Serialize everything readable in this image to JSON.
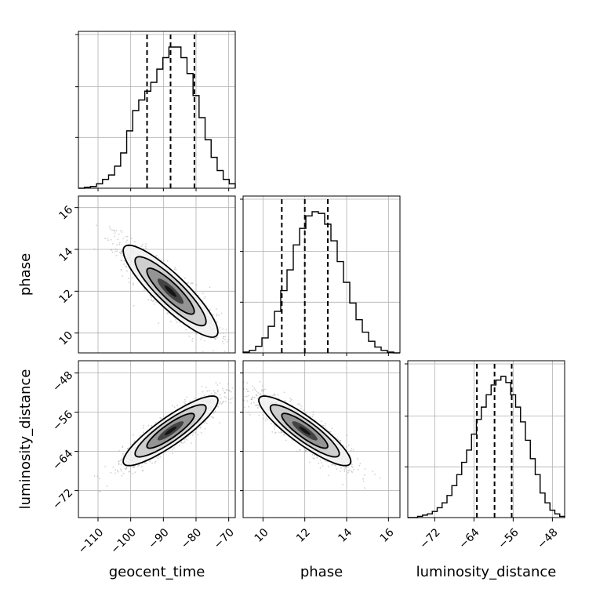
{
  "chart_data": {
    "type": "corner",
    "parameters": [
      {
        "name": "geocent_time",
        "label": "geocent_time",
        "range": [
          -116,
          -68
        ],
        "ticks": [
          -110,
          -100,
          -90,
          -80,
          -70
        ],
        "tick_labels": [
          "−110",
          "−100",
          "−90",
          "−80",
          "−70"
        ],
        "quantiles": [
          -95,
          -87.8,
          -80.5
        ]
      },
      {
        "name": "phase",
        "label": "phase",
        "range": [
          9.05,
          16.55
        ],
        "ticks": [
          10,
          12,
          14,
          16
        ],
        "tick_labels": [
          "10",
          "12",
          "14",
          "16"
        ],
        "quantiles": [
          10.9,
          12.0,
          13.1
        ]
      },
      {
        "name": "luminosity_distance",
        "label": "luminosity_distance",
        "range": [
          -77.5,
          -45.5
        ],
        "ticks": [
          -72,
          -64,
          -56,
          -48
        ],
        "tick_labels": [
          "−72",
          "−64",
          "−56",
          "−48"
        ],
        "quantiles": [
          -63.4,
          -59.8,
          -56.3
        ]
      }
    ],
    "histograms": {
      "geocent_time": {
        "edges": [
          -116,
          -68
        ],
        "counts": [
          0,
          1,
          2,
          5,
          10,
          15,
          25,
          40,
          65,
          88,
          100,
          110,
          120,
          135,
          148,
          160,
          160,
          148,
          130,
          105,
          80,
          55,
          35,
          20,
          10,
          5
        ]
      },
      "phase": {
        "edges": [
          9.05,
          16.55
        ],
        "counts": [
          1,
          3,
          8,
          18,
          32,
          50,
          75,
          100,
          130,
          150,
          165,
          170,
          168,
          155,
          135,
          110,
          85,
          60,
          40,
          25,
          14,
          7,
          3,
          1,
          0
        ]
      },
      "luminosity_distance": {
        "edges": [
          -77.5,
          -45.5
        ],
        "counts": [
          0,
          0,
          1,
          2,
          3,
          5,
          8,
          12,
          18,
          26,
          35,
          45,
          55,
          68,
          80,
          90,
          100,
          108,
          112,
          115,
          110,
          100,
          90,
          78,
          63,
          48,
          35,
          20,
          12,
          6,
          3,
          1
        ]
      }
    },
    "correlations": {
      "phase_vs_geocent_time": -0.88,
      "luminosity_distance_vs_geocent_time": 0.88,
      "luminosity_distance_vs_phase": -0.88
    },
    "colors": {
      "line": "#000000",
      "scatter": "#9a9a9a",
      "grid": "#b0b0b0"
    },
    "grid": true
  }
}
